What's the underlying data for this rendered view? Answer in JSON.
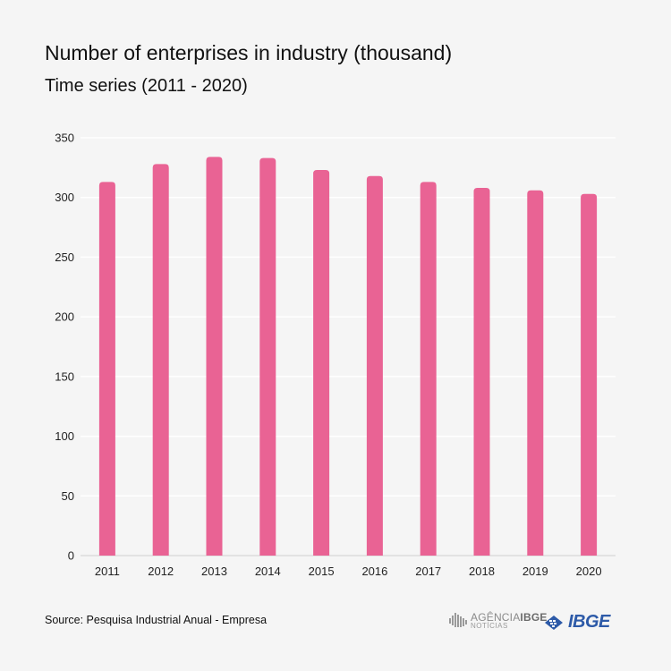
{
  "header": {
    "title": "Number of enterprises in industry (thousand)",
    "subtitle": "Time series (2011 - 2020)"
  },
  "footer": {
    "source": "Source: Pesquisa Industrial Anual - Empresa",
    "agencia_label_prefix": "AGÊNCIA",
    "agencia_label_brand": "IBGE",
    "agencia_sub": "NOTÍCIAS",
    "ibge_label": "IBGE"
  },
  "colors": {
    "bar": "#e96394",
    "grid": "#ffffff",
    "axis": "#d8d8d8",
    "ibge_blue": "#2d5aa8"
  },
  "chart_data": {
    "type": "bar",
    "title": "Number of enterprises in industry (thousand)",
    "subtitle": "Time series (2011 - 2020)",
    "xlabel": "",
    "ylabel": "",
    "categories": [
      "2011",
      "2012",
      "2013",
      "2014",
      "2015",
      "2016",
      "2017",
      "2018",
      "2019",
      "2020"
    ],
    "values": [
      313,
      328,
      334,
      333,
      323,
      318,
      313,
      308,
      306,
      303
    ],
    "ylim": [
      0,
      350
    ],
    "yticks": [
      0,
      50,
      100,
      150,
      200,
      250,
      300,
      350
    ],
    "grid": true,
    "legend": "none"
  }
}
